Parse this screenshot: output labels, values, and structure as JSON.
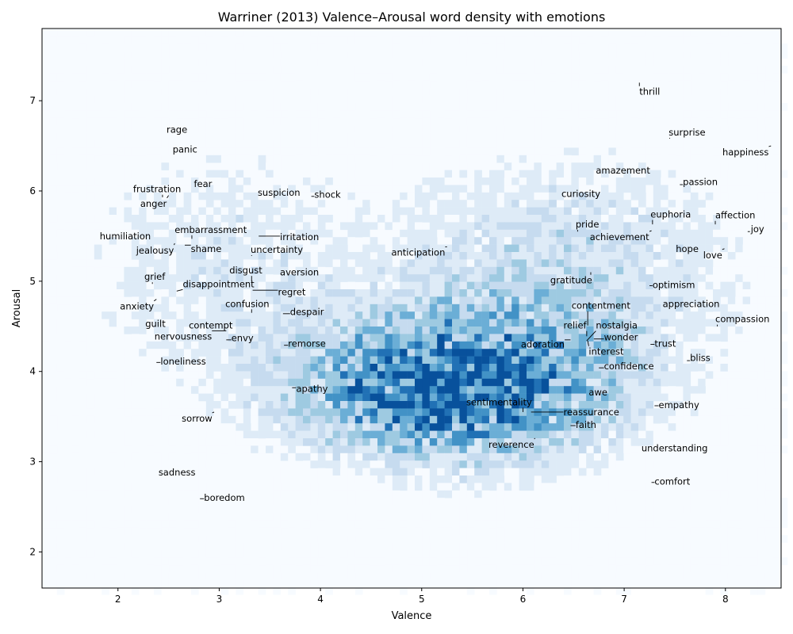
{
  "chart_data": {
    "type": "heatmap",
    "title": "Warriner (2013) Valence–Arousal word density with emotions",
    "xlabel": "Valence",
    "ylabel": "Arousal",
    "xlim": [
      1.25,
      8.55
    ],
    "ylim": [
      1.6,
      7.8
    ],
    "xticks": [
      "2",
      "3",
      "4",
      "5",
      "6",
      "7",
      "8"
    ],
    "yticks": [
      "2",
      "3",
      "4",
      "5",
      "6",
      "7"
    ],
    "colormap": [
      "#f7fbff",
      "#deebf7",
      "#c6dbef",
      "#9ecae1",
      "#6baed6",
      "#4292c6",
      "#2171b5",
      "#08519c"
    ],
    "density_center": {
      "valence": 5.3,
      "arousal": 3.8
    },
    "emotions": [
      {
        "label": "thrill",
        "valence": 7.15,
        "arousal": 7.2,
        "lx": 7.15,
        "ly": 7.1
      },
      {
        "label": "rage",
        "valence": 2.5,
        "arousal": 6.62,
        "lx": 2.48,
        "ly": 6.68
      },
      {
        "label": "surprise",
        "valence": 7.45,
        "arousal": 6.58,
        "lx": 7.44,
        "ly": 6.65
      },
      {
        "label": "panic",
        "valence": 2.56,
        "arousal": 6.4,
        "lx": 2.54,
        "ly": 6.46
      },
      {
        "label": "happiness",
        "valence": 8.45,
        "arousal": 6.5,
        "lx": 7.97,
        "ly": 6.43
      },
      {
        "label": "amazement",
        "valence": 7.26,
        "arousal": 6.28,
        "lx": 6.72,
        "ly": 6.23
      },
      {
        "label": "passion",
        "valence": 7.55,
        "arousal": 6.07,
        "lx": 7.58,
        "ly": 6.1
      },
      {
        "label": "fear",
        "valence": 2.92,
        "arousal": 6.13,
        "lx": 2.75,
        "ly": 6.08
      },
      {
        "label": "frustration",
        "valence": 2.44,
        "arousal": 5.93,
        "lx": 2.15,
        "ly": 6.02
      },
      {
        "label": "suspicion",
        "valence": 3.72,
        "arousal": 5.95,
        "lx": 3.38,
        "ly": 5.98
      },
      {
        "label": "shock",
        "valence": 3.91,
        "arousal": 5.94,
        "lx": 3.94,
        "ly": 5.96
      },
      {
        "label": "curiosity",
        "valence": 6.4,
        "arousal": 5.91,
        "lx": 6.38,
        "ly": 5.97
      },
      {
        "label": "anger",
        "valence": 2.5,
        "arousal": 5.95,
        "lx": 2.22,
        "ly": 5.86
      },
      {
        "label": "euphoria",
        "valence": 7.28,
        "arousal": 5.63,
        "lx": 7.26,
        "ly": 5.74
      },
      {
        "label": "affection",
        "valence": 7.9,
        "arousal": 5.63,
        "lx": 7.9,
        "ly": 5.73
      },
      {
        "label": "embarrassment",
        "valence": 2.73,
        "arousal": 5.47,
        "lx": 2.56,
        "ly": 5.57
      },
      {
        "label": "pride",
        "valence": 6.54,
        "arousal": 5.55,
        "lx": 6.52,
        "ly": 5.63
      },
      {
        "label": "joy",
        "valence": 8.22,
        "arousal": 5.55,
        "lx": 8.25,
        "ly": 5.58
      },
      {
        "label": "humiliation",
        "valence": 2.2,
        "arousal": 5.45,
        "lx": 1.82,
        "ly": 5.5
      },
      {
        "label": "irritation",
        "valence": 3.39,
        "arousal": 5.5,
        "lx": 3.6,
        "ly": 5.49
      },
      {
        "label": "achievement",
        "valence": 7.27,
        "arousal": 5.56,
        "lx": 6.66,
        "ly": 5.49
      },
      {
        "label": "jealousy",
        "valence": 2.56,
        "arousal": 5.42,
        "lx": 2.18,
        "ly": 5.34
      },
      {
        "label": "shame",
        "valence": 2.66,
        "arousal": 5.4,
        "lx": 2.72,
        "ly": 5.36
      },
      {
        "label": "uncertainty",
        "valence": 3.32,
        "arousal": 5.28,
        "lx": 3.31,
        "ly": 5.35
      },
      {
        "label": "hope",
        "valence": 7.52,
        "arousal": 5.35,
        "lx": 7.51,
        "ly": 5.36
      },
      {
        "label": "anticipation",
        "valence": 5.25,
        "arousal": 5.38,
        "lx": 4.7,
        "ly": 5.32
      },
      {
        "label": "love",
        "valence": 7.99,
        "arousal": 5.36,
        "lx": 7.78,
        "ly": 5.29
      },
      {
        "label": "disgust",
        "valence": 3.32,
        "arousal": 5.0,
        "lx": 3.1,
        "ly": 5.12
      },
      {
        "label": "aversion",
        "valence": 3.98,
        "arousal": 5.15,
        "lx": 3.6,
        "ly": 5.1
      },
      {
        "label": "grief",
        "valence": 2.34,
        "arousal": 4.97,
        "lx": 2.26,
        "ly": 5.05
      },
      {
        "label": "gratitude",
        "valence": 6.67,
        "arousal": 5.1,
        "lx": 6.27,
        "ly": 5.01
      },
      {
        "label": "disappointment",
        "valence": 2.58,
        "arousal": 4.89,
        "lx": 2.64,
        "ly": 4.97
      },
      {
        "label": "optimism",
        "valence": 7.25,
        "arousal": 4.95,
        "lx": 7.28,
        "ly": 4.96
      },
      {
        "label": "regret",
        "valence": 3.33,
        "arousal": 4.9,
        "lx": 3.58,
        "ly": 4.88
      },
      {
        "label": "appreciation",
        "valence": 7.38,
        "arousal": 4.7,
        "lx": 7.38,
        "ly": 4.75
      },
      {
        "label": "contentment",
        "valence": 6.64,
        "arousal": 4.51,
        "lx": 6.48,
        "ly": 4.73
      },
      {
        "label": "confusion",
        "valence": 3.32,
        "arousal": 4.65,
        "lx": 3.06,
        "ly": 4.75
      },
      {
        "label": "anxiety",
        "valence": 2.38,
        "arousal": 4.8,
        "lx": 2.02,
        "ly": 4.72
      },
      {
        "label": "despair",
        "valence": 3.63,
        "arousal": 4.64,
        "lx": 3.7,
        "ly": 4.66
      },
      {
        "label": "compassion",
        "valence": 7.92,
        "arousal": 4.5,
        "lx": 7.9,
        "ly": 4.58
      },
      {
        "label": "guilt",
        "valence": 2.3,
        "arousal": 4.49,
        "lx": 2.27,
        "ly": 4.53
      },
      {
        "label": "contempt",
        "valence": 3.05,
        "arousal": 4.45,
        "lx": 2.7,
        "ly": 4.51
      },
      {
        "label": "relief",
        "valence": 6.63,
        "arousal": 4.39,
        "lx": 6.4,
        "ly": 4.51
      },
      {
        "label": "nostalgia",
        "valence": 6.63,
        "arousal": 4.34,
        "lx": 6.72,
        "ly": 4.51
      },
      {
        "label": "nervousness",
        "valence": 3.07,
        "arousal": 4.45,
        "lx": 2.36,
        "ly": 4.39
      },
      {
        "label": "envy",
        "valence": 3.07,
        "arousal": 4.35,
        "lx": 3.12,
        "ly": 4.37
      },
      {
        "label": "wonder",
        "valence": 6.7,
        "arousal": 4.36,
        "lx": 6.8,
        "ly": 4.38
      },
      {
        "label": "remorse",
        "valence": 3.64,
        "arousal": 4.29,
        "lx": 3.68,
        "ly": 4.31
      },
      {
        "label": "trust",
        "valence": 7.26,
        "arousal": 4.3,
        "lx": 7.3,
        "ly": 4.31
      },
      {
        "label": "adoration",
        "valence": 6.47,
        "arousal": 4.35,
        "lx": 5.98,
        "ly": 4.3
      },
      {
        "label": "interest",
        "valence": 6.64,
        "arousal": 4.34,
        "lx": 6.65,
        "ly": 4.22
      },
      {
        "label": "bliss",
        "valence": 7.62,
        "arousal": 4.12,
        "lx": 7.65,
        "ly": 4.15
      },
      {
        "label": "loneliness",
        "valence": 2.38,
        "arousal": 4.1,
        "lx": 2.42,
        "ly": 4.11
      },
      {
        "label": "confidence",
        "valence": 6.75,
        "arousal": 4.04,
        "lx": 6.8,
        "ly": 4.06
      },
      {
        "label": "apathy",
        "valence": 3.72,
        "arousal": 3.82,
        "lx": 3.76,
        "ly": 3.81
      },
      {
        "label": "awe",
        "valence": 6.7,
        "arousal": 3.75,
        "lx": 6.65,
        "ly": 3.77
      },
      {
        "label": "sentimentality",
        "valence": 6.0,
        "arousal": 3.55,
        "lx": 5.44,
        "ly": 3.66
      },
      {
        "label": "empathy",
        "valence": 7.3,
        "arousal": 3.62,
        "lx": 7.34,
        "ly": 3.63
      },
      {
        "label": "reassurance",
        "valence": 6.08,
        "arousal": 3.55,
        "lx": 6.4,
        "ly": 3.55
      },
      {
        "label": "sorrow",
        "valence": 2.95,
        "arousal": 3.55,
        "lx": 2.63,
        "ly": 3.48
      },
      {
        "label": "faith",
        "valence": 6.47,
        "arousal": 3.4,
        "lx": 6.52,
        "ly": 3.41
      },
      {
        "label": "reverence",
        "valence": 6.12,
        "arousal": 3.26,
        "lx": 5.66,
        "ly": 3.19
      },
      {
        "label": "understanding",
        "valence": 7.17,
        "arousal": 3.1,
        "lx": 7.17,
        "ly": 3.15
      },
      {
        "label": "sadness",
        "valence": 2.42,
        "arousal": 2.82,
        "lx": 2.4,
        "ly": 2.88
      },
      {
        "label": "comfort",
        "valence": 7.27,
        "arousal": 2.77,
        "lx": 7.3,
        "ly": 2.78
      },
      {
        "label": "boredom",
        "valence": 2.81,
        "arousal": 2.59,
        "lx": 2.85,
        "ly": 2.6
      }
    ]
  }
}
